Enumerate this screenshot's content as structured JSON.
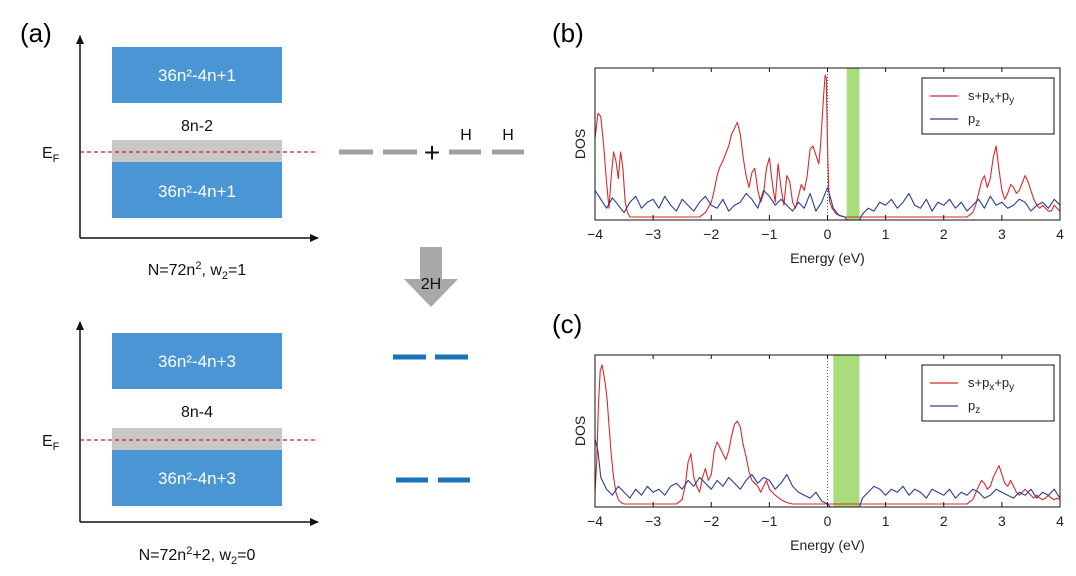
{
  "colors": {
    "band": "#4a95d3",
    "gap": "#c8c8c8",
    "fermi": "#d81e1e",
    "arrow_fill": "#a8a8a8",
    "red_series": "#d92a2a",
    "blue_series": "#2c3e94",
    "green_gap": "#a8dc7c",
    "dash_gray": "#a0a0a0",
    "dash_blue": "#1a72b8"
  },
  "panel_a": {
    "label": "(a)",
    "top": {
      "upper_band": "36n²-4n+1",
      "lower_band": "36n²-4n+1",
      "gap_label": "8n-2",
      "fermi_label": "E",
      "fermi_sub": "F",
      "caption_pre": "N=72n",
      "caption_sup": "2",
      "caption_mid": ", w",
      "caption_sub": "2",
      "caption_post": "=1"
    },
    "bottom": {
      "upper_band": "36n²-4n+3",
      "lower_band": "36n²-4n+3",
      "gap_label": "8n-4",
      "fermi_label": "E",
      "fermi_sub": "F",
      "caption_pre": "N=72n",
      "caption_sup": "2",
      "caption_mid": "+2, w",
      "caption_sub": "2",
      "caption_post": "=0"
    },
    "plus_sign": "+",
    "h1": "H",
    "h2": "H",
    "arrow_label": "2H"
  },
  "chart_data": [
    {
      "panel": "(b)",
      "type": "line",
      "xlabel": "Energy (eV)",
      "ylabel": "DOS",
      "xlim": [
        -4,
        4
      ],
      "ylim": [
        0,
        1
      ],
      "xticks": [
        "−4",
        "−3",
        "−2",
        "−1",
        "0",
        "1",
        "2",
        "3",
        "4"
      ],
      "gap_band": [
        0.33,
        0.55
      ],
      "fermi_level": 0,
      "legend": {
        "position": "top-right",
        "red_main": "s+p",
        "red_x": "x",
        "red_plus": "+p",
        "red_y": "y",
        "blue_main": "p",
        "blue_z": "z"
      },
      "series": [
        {
          "name": "s+px+py",
          "color": "red",
          "x": [
            -4.0,
            -3.95,
            -3.9,
            -3.85,
            -3.8,
            -3.76,
            -3.72,
            -3.68,
            -3.64,
            -3.6,
            -3.56,
            -3.52,
            -3.48,
            -3.44,
            -3.4,
            -3.3,
            -3.2,
            -3.1,
            -3.0,
            -2.8,
            -2.6,
            -2.4,
            -2.2,
            -2.1,
            -2.0,
            -1.95,
            -1.9,
            -1.85,
            -1.8,
            -1.75,
            -1.7,
            -1.65,
            -1.6,
            -1.55,
            -1.5,
            -1.45,
            -1.4,
            -1.35,
            -1.3,
            -1.25,
            -1.2,
            -1.15,
            -1.1,
            -1.05,
            -1.0,
            -0.95,
            -0.9,
            -0.85,
            -0.8,
            -0.75,
            -0.7,
            -0.65,
            -0.6,
            -0.55,
            -0.5,
            -0.45,
            -0.4,
            -0.35,
            -0.3,
            -0.25,
            -0.2,
            -0.15,
            -0.12,
            -0.09,
            -0.06,
            -0.04,
            -0.02,
            0.0,
            0.02,
            0.04,
            0.08,
            0.15,
            0.3,
            0.5,
            1.0,
            1.5,
            2.0,
            2.4,
            2.5,
            2.55,
            2.6,
            2.65,
            2.7,
            2.75,
            2.8,
            2.85,
            2.9,
            2.95,
            3.0,
            3.05,
            3.1,
            3.15,
            3.2,
            3.25,
            3.3,
            3.35,
            3.4,
            3.45,
            3.5,
            3.55,
            3.6,
            3.65,
            3.7,
            3.75,
            3.8,
            3.85,
            3.9,
            3.95,
            4.0
          ],
          "y": [
            0.55,
            0.72,
            0.7,
            0.5,
            0.25,
            0.08,
            0.3,
            0.46,
            0.4,
            0.28,
            0.46,
            0.35,
            0.12,
            0.05,
            0.02,
            0.02,
            0.02,
            0.02,
            0.02,
            0.02,
            0.02,
            0.02,
            0.02,
            0.05,
            0.12,
            0.2,
            0.3,
            0.36,
            0.4,
            0.45,
            0.5,
            0.58,
            0.62,
            0.66,
            0.58,
            0.42,
            0.3,
            0.22,
            0.32,
            0.35,
            0.2,
            0.12,
            0.18,
            0.35,
            0.42,
            0.25,
            0.12,
            0.38,
            0.22,
            0.1,
            0.3,
            0.26,
            0.12,
            0.08,
            0.16,
            0.24,
            0.2,
            0.3,
            0.48,
            0.5,
            0.44,
            0.38,
            0.5,
            0.7,
            0.88,
            0.98,
            0.96,
            0.5,
            0.22,
            0.12,
            0.08,
            0.04,
            0.02,
            0.02,
            0.02,
            0.02,
            0.02,
            0.02,
            0.05,
            0.1,
            0.18,
            0.26,
            0.3,
            0.22,
            0.28,
            0.42,
            0.5,
            0.34,
            0.2,
            0.14,
            0.18,
            0.24,
            0.22,
            0.18,
            0.2,
            0.25,
            0.3,
            0.26,
            0.2,
            0.14,
            0.1,
            0.08,
            0.1,
            0.08,
            0.06,
            0.06,
            0.1,
            0.08,
            0.06
          ]
        },
        {
          "name": "pz",
          "color": "blue",
          "x": [
            -4.0,
            -3.9,
            -3.8,
            -3.7,
            -3.6,
            -3.5,
            -3.4,
            -3.3,
            -3.2,
            -3.1,
            -3.0,
            -2.9,
            -2.8,
            -2.7,
            -2.6,
            -2.5,
            -2.4,
            -2.3,
            -2.2,
            -2.1,
            -2.0,
            -1.9,
            -1.8,
            -1.7,
            -1.6,
            -1.5,
            -1.4,
            -1.3,
            -1.2,
            -1.1,
            -1.0,
            -0.9,
            -0.8,
            -0.7,
            -0.6,
            -0.5,
            -0.4,
            -0.3,
            -0.2,
            -0.1,
            0.0,
            0.1,
            0.2,
            0.3,
            0.33,
            0.55,
            0.6,
            0.7,
            0.8,
            0.9,
            1.0,
            1.1,
            1.2,
            1.3,
            1.4,
            1.5,
            1.6,
            1.7,
            1.8,
            1.9,
            2.0,
            2.1,
            2.2,
            2.3,
            2.4,
            2.5,
            2.6,
            2.7,
            2.8,
            2.9,
            3.0,
            3.1,
            3.2,
            3.3,
            3.4,
            3.5,
            3.6,
            3.7,
            3.8,
            3.9,
            4.0
          ],
          "y": [
            0.2,
            0.14,
            0.08,
            0.15,
            0.1,
            0.05,
            0.12,
            0.16,
            0.08,
            0.12,
            0.14,
            0.08,
            0.16,
            0.1,
            0.06,
            0.14,
            0.1,
            0.06,
            0.12,
            0.16,
            0.1,
            0.08,
            0.14,
            0.06,
            0.1,
            0.12,
            0.18,
            0.14,
            0.08,
            0.2,
            0.16,
            0.1,
            0.14,
            0.1,
            0.06,
            0.12,
            0.08,
            0.18,
            0.06,
            0.12,
            0.22,
            0.08,
            0.03,
            0.02,
            0.0,
            0.0,
            0.04,
            0.08,
            0.06,
            0.12,
            0.1,
            0.14,
            0.08,
            0.12,
            0.18,
            0.1,
            0.08,
            0.14,
            0.06,
            0.12,
            0.1,
            0.14,
            0.08,
            0.12,
            0.06,
            0.1,
            0.14,
            0.08,
            0.16,
            0.1,
            0.12,
            0.08,
            0.1,
            0.14,
            0.12,
            0.06,
            0.1,
            0.12,
            0.08,
            0.14,
            0.1
          ]
        }
      ]
    },
    {
      "panel": "(c)",
      "type": "line",
      "xlabel": "Energy (eV)",
      "ylabel": "DOS",
      "xlim": [
        -4,
        4
      ],
      "ylim": [
        0,
        1
      ],
      "xticks": [
        "−4",
        "−3",
        "−2",
        "−1",
        "0",
        "1",
        "2",
        "3",
        "4"
      ],
      "gap_band": [
        0.1,
        0.55
      ],
      "fermi_level": 0,
      "legend": {
        "position": "top-right",
        "red_main": "s+p",
        "red_x": "x",
        "red_plus": "+p",
        "red_y": "y",
        "blue_main": "p",
        "blue_z": "z"
      },
      "series": [
        {
          "name": "s+px+py",
          "color": "red",
          "x": [
            -4.0,
            -3.97,
            -3.94,
            -3.91,
            -3.88,
            -3.85,
            -3.82,
            -3.79,
            -3.76,
            -3.72,
            -3.68,
            -3.64,
            -3.6,
            -3.55,
            -3.5,
            -3.4,
            -3.2,
            -3.0,
            -2.8,
            -2.6,
            -2.5,
            -2.45,
            -2.4,
            -2.35,
            -2.3,
            -2.25,
            -2.2,
            -2.15,
            -2.1,
            -2.05,
            -2.0,
            -1.95,
            -1.9,
            -1.85,
            -1.8,
            -1.75,
            -1.7,
            -1.65,
            -1.6,
            -1.55,
            -1.5,
            -1.45,
            -1.4,
            -1.35,
            -1.3,
            -1.25,
            -1.2,
            -1.15,
            -1.1,
            -1.05,
            -1.0,
            -0.9,
            -0.8,
            -0.7,
            -0.6,
            -0.5,
            -0.4,
            -0.3,
            -0.2,
            -0.1,
            0.0,
            0.3,
            1.0,
            1.5,
            2.0,
            2.4,
            2.5,
            2.6,
            2.65,
            2.7,
            2.75,
            2.8,
            2.85,
            2.9,
            2.95,
            3.0,
            3.05,
            3.1,
            3.15,
            3.2,
            3.25,
            3.3,
            3.35,
            3.4,
            3.45,
            3.5,
            3.55,
            3.6,
            3.65,
            3.7,
            3.75,
            3.8,
            3.85,
            3.9,
            3.95,
            4.0
          ],
          "y": [
            0.1,
            0.3,
            0.7,
            0.92,
            0.96,
            0.9,
            0.82,
            0.72,
            0.55,
            0.35,
            0.2,
            0.1,
            0.05,
            0.03,
            0.02,
            0.02,
            0.02,
            0.02,
            0.02,
            0.02,
            0.05,
            0.14,
            0.3,
            0.36,
            0.2,
            0.14,
            0.1,
            0.2,
            0.26,
            0.18,
            0.22,
            0.38,
            0.44,
            0.4,
            0.36,
            0.32,
            0.38,
            0.48,
            0.56,
            0.58,
            0.54,
            0.42,
            0.34,
            0.24,
            0.18,
            0.16,
            0.14,
            0.1,
            0.14,
            0.18,
            0.12,
            0.08,
            0.05,
            0.03,
            0.02,
            0.02,
            0.02,
            0.02,
            0.02,
            0.02,
            0.02,
            0.02,
            0.02,
            0.02,
            0.02,
            0.02,
            0.05,
            0.14,
            0.18,
            0.16,
            0.12,
            0.14,
            0.2,
            0.24,
            0.28,
            0.22,
            0.16,
            0.14,
            0.18,
            0.14,
            0.1,
            0.08,
            0.1,
            0.12,
            0.1,
            0.08,
            0.06,
            0.08,
            0.06,
            0.05,
            0.06,
            0.08,
            0.06,
            0.05,
            0.06,
            0.05
          ]
        },
        {
          "name": "pz",
          "color": "blue",
          "x": [
            -4.0,
            -3.95,
            -3.9,
            -3.8,
            -3.7,
            -3.6,
            -3.5,
            -3.4,
            -3.3,
            -3.2,
            -3.1,
            -3.0,
            -2.9,
            -2.8,
            -2.7,
            -2.6,
            -2.5,
            -2.4,
            -2.3,
            -2.2,
            -2.1,
            -2.0,
            -1.9,
            -1.8,
            -1.7,
            -1.6,
            -1.5,
            -1.4,
            -1.3,
            -1.2,
            -1.1,
            -1.0,
            -0.9,
            -0.8,
            -0.7,
            -0.6,
            -0.5,
            -0.4,
            -0.3,
            -0.2,
            -0.1,
            0.0,
            0.05,
            0.1,
            0.55,
            0.6,
            0.7,
            0.8,
            0.9,
            1.0,
            1.1,
            1.2,
            1.3,
            1.4,
            1.5,
            1.6,
            1.7,
            1.8,
            1.9,
            2.0,
            2.1,
            2.2,
            2.3,
            2.4,
            2.5,
            2.6,
            2.7,
            2.8,
            2.9,
            3.0,
            3.1,
            3.2,
            3.3,
            3.4,
            3.5,
            3.6,
            3.7,
            3.8,
            3.9,
            4.0
          ],
          "y": [
            0.46,
            0.38,
            0.2,
            0.12,
            0.08,
            0.14,
            0.1,
            0.06,
            0.12,
            0.08,
            0.14,
            0.1,
            0.12,
            0.08,
            0.14,
            0.16,
            0.12,
            0.18,
            0.14,
            0.2,
            0.16,
            0.12,
            0.18,
            0.14,
            0.2,
            0.16,
            0.12,
            0.18,
            0.22,
            0.16,
            0.2,
            0.18,
            0.12,
            0.16,
            0.22,
            0.14,
            0.1,
            0.08,
            0.06,
            0.1,
            0.04,
            0.02,
            0.0,
            0.0,
            0.0,
            0.06,
            0.1,
            0.14,
            0.12,
            0.08,
            0.12,
            0.1,
            0.14,
            0.08,
            0.12,
            0.1,
            0.06,
            0.12,
            0.1,
            0.08,
            0.12,
            0.06,
            0.1,
            0.08,
            0.12,
            0.1,
            0.06,
            0.08,
            0.12,
            0.1,
            0.08,
            0.06,
            0.1,
            0.08,
            0.12,
            0.06,
            0.1,
            0.08,
            0.12,
            0.06
          ]
        }
      ]
    }
  ]
}
